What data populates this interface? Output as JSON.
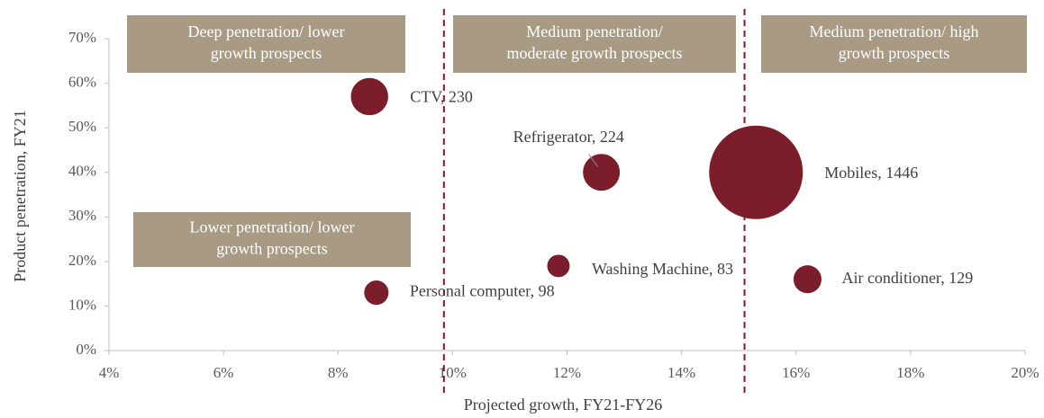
{
  "chart_data": {
    "type": "bubble",
    "xlabel": "Projected growth, FY21-FY26",
    "ylabel": "Product penetration, FY21",
    "xlim": [
      4,
      20
    ],
    "xticks": [
      {
        "value": 4,
        "label": "4%"
      },
      {
        "value": 6,
        "label": "6%"
      },
      {
        "value": 8,
        "label": "8%"
      },
      {
        "value": 10,
        "label": "10%"
      },
      {
        "value": 12,
        "label": "12%"
      },
      {
        "value": 14,
        "label": "14%"
      },
      {
        "value": 16,
        "label": "16%"
      },
      {
        "value": 18,
        "label": "18%"
      },
      {
        "value": 20,
        "label": "20%"
      }
    ],
    "ylim": [
      0,
      70
    ],
    "yticks": [
      {
        "value": 0,
        "label": "0%"
      },
      {
        "value": 10,
        "label": "10%"
      },
      {
        "value": 20,
        "label": "20%"
      },
      {
        "value": 30,
        "label": "30%"
      },
      {
        "value": 40,
        "label": "40%"
      },
      {
        "value": 50,
        "label": "50%"
      },
      {
        "value": 60,
        "label": "60%"
      },
      {
        "value": 70,
        "label": "70%"
      }
    ],
    "color": "#7b1d2b",
    "points": [
      {
        "label": "CTV, 230",
        "x": 8.55,
        "y": 57,
        "size": 230
      },
      {
        "label": "Refrigerator, 224",
        "x": 12.6,
        "y": 40,
        "size": 224
      },
      {
        "label": "Mobiles, 1446",
        "x": 15.3,
        "y": 40,
        "size": 1446
      },
      {
        "label": "Washing Machine, 83",
        "x": 11.85,
        "y": 19,
        "size": 83
      },
      {
        "label": "Air conditioner, 129",
        "x": 16.2,
        "y": 16,
        "size": 129
      },
      {
        "label": "Personal computer, 98",
        "x": 8.67,
        "y": 13,
        "size": 98
      }
    ],
    "vlines": [
      9.85,
      15.1
    ],
    "annotations": [
      [
        "Deep penetration/ lower",
        "growth prospects"
      ],
      [
        "Medium penetration/",
        "moderate growth prospects"
      ],
      [
        "Medium penetration/ high",
        "growth prospects"
      ],
      [
        "Lower penetration/ lower",
        "growth prospects"
      ]
    ]
  }
}
